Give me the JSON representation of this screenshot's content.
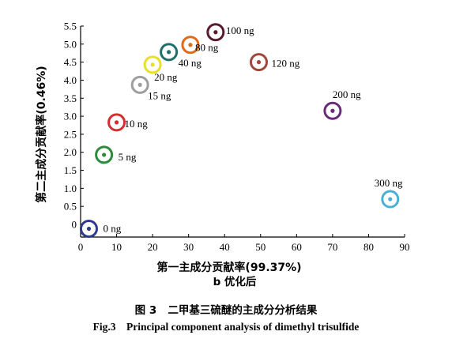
{
  "chart_data": {
    "type": "scatter",
    "xlabel": "第一主成分贡献率(99.37%)",
    "ylabel": "第二主成分贡献率(0.46%)",
    "subtitle": "b 优化后",
    "xlim": [
      0,
      90
    ],
    "ylim": [
      -0.3,
      5.5
    ],
    "x_ticks": [
      "0",
      "10",
      "20",
      "30",
      "40",
      "50",
      "60",
      "70",
      "80",
      "90"
    ],
    "y_ticks": [
      "0",
      "0.5",
      "1.0",
      "1.5",
      "2.0",
      "2.5",
      "3.0",
      "3.5",
      "4.0",
      "4.5",
      "5.0",
      "5.5"
    ],
    "grid": false,
    "points": [
      {
        "label": "0 ng",
        "x": 2.3,
        "y": -0.12,
        "color": "#2e3a8c"
      },
      {
        "label": "5 ng",
        "x": 6.5,
        "y": 1.93,
        "color": "#2e8b3a"
      },
      {
        "label": "10 ng",
        "x": 10.0,
        "y": 2.83,
        "color": "#d32f2f"
      },
      {
        "label": "15 ng",
        "x": 16.5,
        "y": 3.87,
        "color": "#9e9e9e"
      },
      {
        "label": "20 ng",
        "x": 20.0,
        "y": 4.43,
        "color": "#e6e02a"
      },
      {
        "label": "40 ng",
        "x": 24.5,
        "y": 4.78,
        "color": "#1f6f6a"
      },
      {
        "label": "80 ng",
        "x": 30.5,
        "y": 4.98,
        "color": "#e06a1a"
      },
      {
        "label": "100 ng",
        "x": 37.5,
        "y": 5.33,
        "color": "#5a1a2e"
      },
      {
        "label": "120 ng",
        "x": 49.5,
        "y": 4.5,
        "color": "#a0463a"
      },
      {
        "label": "200 ng",
        "x": 70.0,
        "y": 3.15,
        "color": "#6a2a7a"
      },
      {
        "label": "300 ng",
        "x": 86.0,
        "y": 0.7,
        "color": "#4ab0d6"
      }
    ]
  },
  "captions": {
    "cn_number": "图 3",
    "cn_title": "二甲基三硫醚的主成分分析结果",
    "en_number": "Fig.3",
    "en_title": "Principal component analysis of dimethyl trisulfide"
  }
}
